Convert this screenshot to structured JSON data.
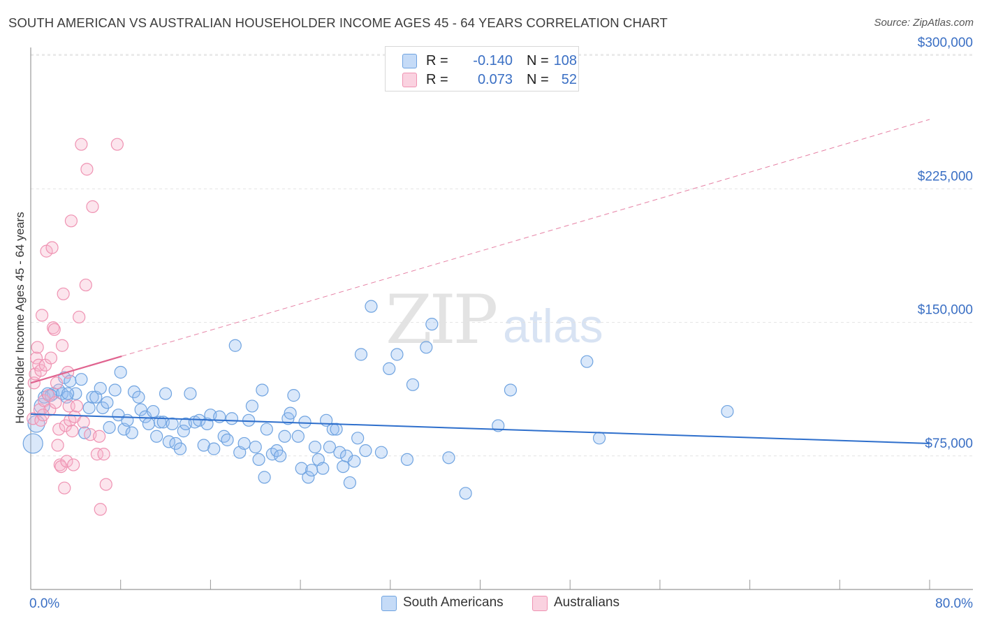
{
  "title": "SOUTH AMERICAN VS AUSTRALIAN HOUSEHOLDER INCOME AGES 45 - 64 YEARS CORRELATION CHART",
  "source": "Source: ZipAtlas.com",
  "watermark": {
    "zip": "ZIP",
    "atlas": "atlas"
  },
  "legend": {
    "rows": [
      {
        "r_label": "R =",
        "r_value": "-0.140",
        "n_label": "N =",
        "n_value": "108"
      },
      {
        "r_label": "R =",
        "r_value": "0.073",
        "n_label": "N =",
        "n_value": "52"
      }
    ]
  },
  "bottom_legend": {
    "south": "South Americans",
    "aus": "Australians"
  },
  "colors": {
    "blue": "#6fa3e0",
    "blue_fill": "rgba(150,190,240,0.35)",
    "blue_line": "#2e6fcc",
    "pink": "#ef92b2",
    "pink_fill": "rgba(246,180,204,0.35)",
    "pink_line": "#e0638f",
    "tick_text": "#3a6fc4",
    "grid": "#e2e2e2"
  },
  "chart_data": {
    "type": "scatter",
    "title": "SOUTH AMERICAN VS AUSTRALIAN HOUSEHOLDER INCOME AGES 45 - 64 YEARS CORRELATION CHART",
    "xlabel": "",
    "ylabel": "Householder Income Ages 45 - 64 years",
    "xlim": [
      0,
      80
    ],
    "ylim": [
      0,
      310000
    ],
    "x_tick_labels": [
      "0.0%",
      "80.0%"
    ],
    "y_ticks": [
      75000,
      150000,
      225000,
      300000
    ],
    "y_tick_labels": [
      "$75,000",
      "$150,000",
      "$225,000",
      "$300,000"
    ],
    "series": [
      {
        "name": "South Americans",
        "trend": {
          "x": [
            0,
            80
          ],
          "y": [
            98500,
            82000
          ],
          "style": "solid"
        },
        "points": [
          [
            0.2,
            82000
          ],
          [
            0.5,
            93000
          ],
          [
            1.0,
            103000
          ],
          [
            1.2,
            108000
          ],
          [
            1.5,
            110000
          ],
          [
            2.0,
            110000
          ],
          [
            2.5,
            112000
          ],
          [
            2.8,
            110000
          ],
          [
            3.0,
            119000
          ],
          [
            3.2,
            108000
          ],
          [
            3.5,
            117000
          ],
          [
            4.0,
            110000
          ],
          [
            4.5,
            118000
          ],
          [
            4.8,
            88000
          ],
          [
            5.2,
            102000
          ],
          [
            5.5,
            108000
          ],
          [
            5.8,
            108000
          ],
          [
            6.2,
            113000
          ],
          [
            6.4,
            102000
          ],
          [
            6.8,
            105000
          ],
          [
            7.0,
            91000
          ],
          [
            7.5,
            112000
          ],
          [
            7.8,
            98000
          ],
          [
            8.0,
            122000
          ],
          [
            8.3,
            90000
          ],
          [
            8.6,
            95000
          ],
          [
            9.0,
            88000
          ],
          [
            9.2,
            111000
          ],
          [
            9.6,
            108000
          ],
          [
            9.8,
            101000
          ],
          [
            10.2,
            97000
          ],
          [
            10.5,
            93000
          ],
          [
            10.9,
            100000
          ],
          [
            11.2,
            86000
          ],
          [
            11.5,
            94000
          ],
          [
            11.8,
            94000
          ],
          [
            12.0,
            110000
          ],
          [
            12.3,
            83000
          ],
          [
            12.6,
            93000
          ],
          [
            12.9,
            82000
          ],
          [
            13.3,
            79000
          ],
          [
            13.6,
            89000
          ],
          [
            13.8,
            93000
          ],
          [
            14.2,
            110000
          ],
          [
            14.6,
            94000
          ],
          [
            15.0,
            95000
          ],
          [
            15.4,
            81000
          ],
          [
            15.7,
            93000
          ],
          [
            16.0,
            98000
          ],
          [
            16.3,
            79000
          ],
          [
            16.8,
            97000
          ],
          [
            17.2,
            86000
          ],
          [
            17.5,
            84000
          ],
          [
            17.9,
            96000
          ],
          [
            18.2,
            137000
          ],
          [
            18.6,
            77000
          ],
          [
            19.0,
            82000
          ],
          [
            19.4,
            95000
          ],
          [
            19.7,
            103000
          ],
          [
            20.0,
            80000
          ],
          [
            20.3,
            73000
          ],
          [
            20.6,
            112000
          ],
          [
            20.8,
            63000
          ],
          [
            21.0,
            90000
          ],
          [
            21.5,
            76000
          ],
          [
            21.9,
            78000
          ],
          [
            22.2,
            75000
          ],
          [
            22.6,
            86000
          ],
          [
            22.9,
            96000
          ],
          [
            23.1,
            99000
          ],
          [
            23.4,
            109000
          ],
          [
            23.8,
            86000
          ],
          [
            24.1,
            68000
          ],
          [
            24.4,
            94000
          ],
          [
            24.7,
            63000
          ],
          [
            25.0,
            67000
          ],
          [
            25.3,
            80000
          ],
          [
            25.6,
            73000
          ],
          [
            26.0,
            68000
          ],
          [
            26.3,
            95000
          ],
          [
            26.6,
            80000
          ],
          [
            26.9,
            90000
          ],
          [
            27.2,
            90000
          ],
          [
            27.5,
            77000
          ],
          [
            27.8,
            69000
          ],
          [
            28.1,
            75000
          ],
          [
            28.4,
            60000
          ],
          [
            28.8,
            72000
          ],
          [
            29.1,
            85000
          ],
          [
            29.4,
            132000
          ],
          [
            29.8,
            78000
          ],
          [
            30.3,
            159000
          ],
          [
            31.2,
            77000
          ],
          [
            31.9,
            124000
          ],
          [
            32.6,
            132000
          ],
          [
            33.5,
            73000
          ],
          [
            34.0,
            115000
          ],
          [
            35.2,
            136000
          ],
          [
            35.7,
            149000
          ],
          [
            37.2,
            74000
          ],
          [
            38.7,
            54000
          ],
          [
            41.6,
            92000
          ],
          [
            42.7,
            112000
          ],
          [
            49.5,
            128000
          ],
          [
            50.6,
            85000
          ],
          [
            62.0,
            100000
          ],
          [
            1.8,
            109000
          ],
          [
            3.3,
            110000
          ]
        ]
      },
      {
        "name": "Australians",
        "trend": {
          "x": [
            0,
            8.1
          ],
          "y": [
            116000,
            131000
          ],
          "dashed_x": [
            80
          ],
          "dashed_y": [
            264000
          ],
          "style": "solid+dashed"
        },
        "points": [
          [
            0.2,
            96000
          ],
          [
            0.3,
            116000
          ],
          [
            0.4,
            121000
          ],
          [
            0.5,
            130000
          ],
          [
            0.6,
            136000
          ],
          [
            0.7,
            126000
          ],
          [
            0.8,
            101000
          ],
          [
            0.9,
            123000
          ],
          [
            1.0,
            154000
          ],
          [
            1.2,
            106000
          ],
          [
            1.3,
            126000
          ],
          [
            1.4,
            190000
          ],
          [
            1.6,
            109000
          ],
          [
            1.7,
            101000
          ],
          [
            1.8,
            130000
          ],
          [
            1.9,
            192000
          ],
          [
            2.0,
            147000
          ],
          [
            2.1,
            146000
          ],
          [
            2.2,
            105000
          ],
          [
            2.3,
            116000
          ],
          [
            2.4,
            81000
          ],
          [
            2.5,
            90000
          ],
          [
            2.6,
            70000
          ],
          [
            2.7,
            69000
          ],
          [
            2.8,
            137000
          ],
          [
            2.9,
            166000
          ],
          [
            3.0,
            57000
          ],
          [
            3.1,
            92000
          ],
          [
            3.2,
            72000
          ],
          [
            3.3,
            122000
          ],
          [
            3.4,
            103000
          ],
          [
            3.5,
            95000
          ],
          [
            3.6,
            207000
          ],
          [
            3.7,
            89000
          ],
          [
            3.8,
            70000
          ],
          [
            3.9,
            97000
          ],
          [
            4.1,
            103000
          ],
          [
            4.3,
            153000
          ],
          [
            4.5,
            250000
          ],
          [
            4.7,
            94000
          ],
          [
            4.9,
            171000
          ],
          [
            5.0,
            236000
          ],
          [
            5.3,
            87000
          ],
          [
            5.5,
            215000
          ],
          [
            5.9,
            76000
          ],
          [
            6.1,
            86000
          ],
          [
            6.2,
            45000
          ],
          [
            6.5,
            76000
          ],
          [
            6.7,
            59000
          ],
          [
            7.7,
            250000
          ],
          [
            0.9,
            95000
          ],
          [
            1.1,
            98000
          ]
        ]
      }
    ]
  }
}
